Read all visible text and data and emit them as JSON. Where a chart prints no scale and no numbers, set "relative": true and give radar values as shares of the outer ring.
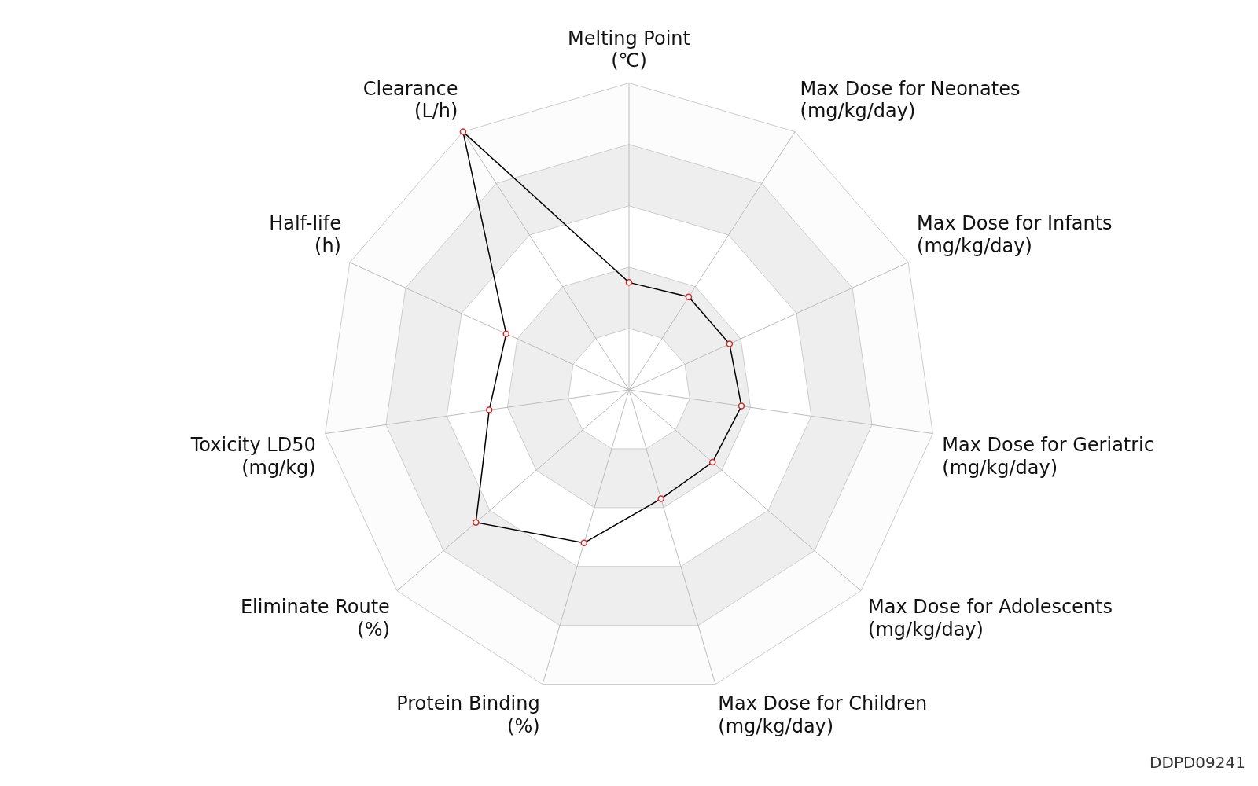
{
  "chart_data": {
    "type": "radar",
    "relative": true,
    "categories": [
      "Melting Point\n(℃)",
      "Max Dose for Neonates\n(mg/kg/day)",
      "Max Dose for Infants\n(mg/kg/day)",
      "Max Dose for Geriatric\n(mg/kg/day)",
      "Max Dose for Adolescents\n(mg/kg/day)",
      "Max Dose for Children\n(mg/kg/day)",
      "Protein Binding\n(%)",
      "Eliminate Route\n(%)",
      "Toxicity LD50\n(mg/kg)",
      "Half-life\n(h)",
      "Clearance\n(L/h)"
    ],
    "series": [
      {
        "color": "#000000",
        "values": [
          0.35,
          0.36,
          0.36,
          0.37,
          0.36,
          0.37,
          0.52,
          0.66,
          0.46,
          0.44,
          1.0
        ]
      }
    ],
    "marker": "circle",
    "grid": true,
    "legend": false,
    "annotations": [
      "DDPD09241"
    ]
  }
}
